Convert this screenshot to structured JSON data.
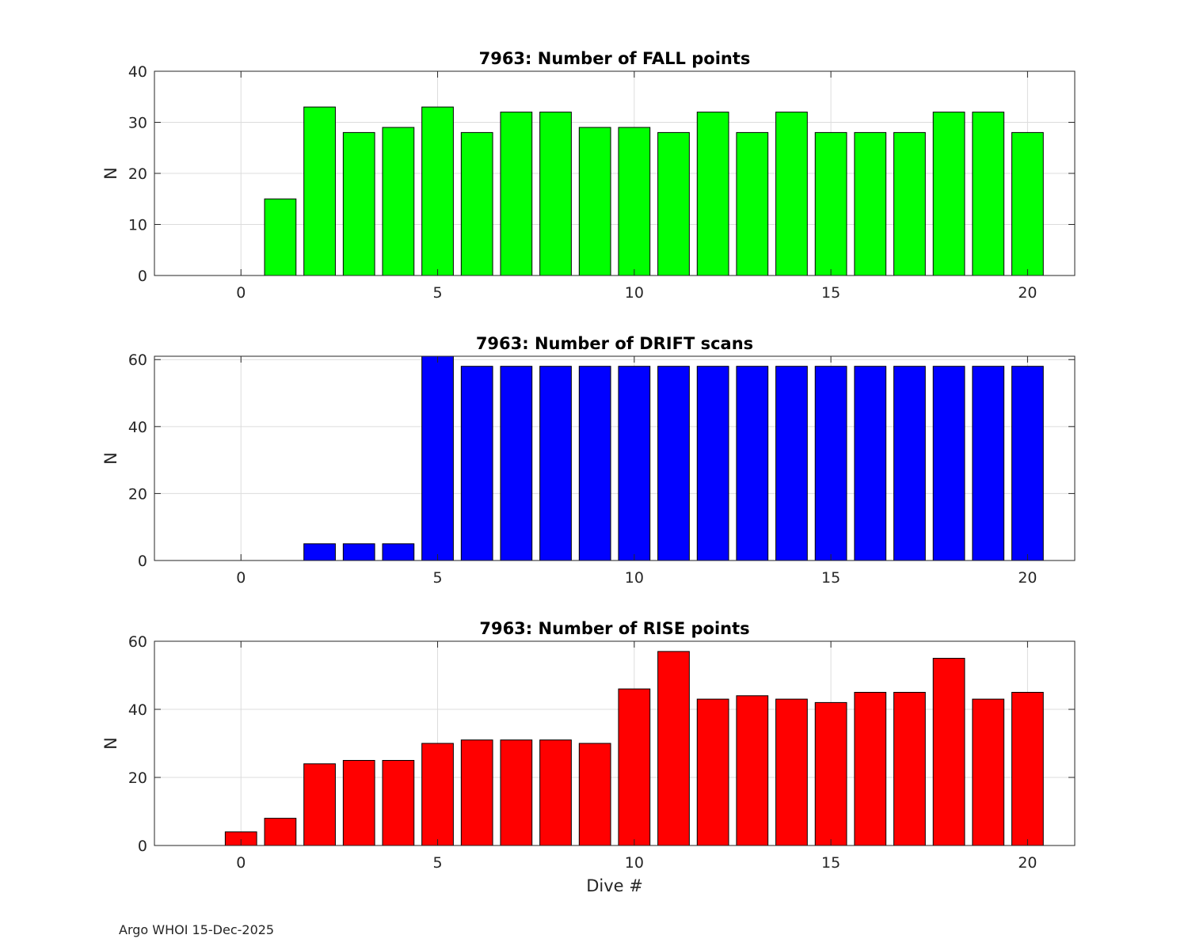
{
  "footer": "Argo WHOI 15-Dec-2025",
  "chart_data": [
    {
      "type": "bar",
      "title": "7963: Number of FALL points",
      "xlabel": "",
      "ylabel": "N",
      "x": [
        1,
        2,
        3,
        4,
        5,
        6,
        7,
        8,
        9,
        10,
        11,
        12,
        13,
        14,
        15,
        16,
        17,
        18,
        19,
        20
      ],
      "values": [
        15,
        33,
        28,
        29,
        33,
        28,
        32,
        32,
        29,
        29,
        28,
        32,
        28,
        32,
        28,
        28,
        28,
        32,
        32,
        28
      ],
      "xlim": [
        -2.2,
        21.2
      ],
      "ylim": [
        0,
        40
      ],
      "xticks": [
        0,
        5,
        10,
        15,
        20
      ],
      "yticks": [
        0,
        10,
        20,
        30,
        40
      ],
      "grid": true,
      "color": "#00ff00"
    },
    {
      "type": "bar",
      "title": "7963: Number of DRIFT scans",
      "xlabel": "",
      "ylabel": "N",
      "x": [
        2,
        3,
        4,
        5,
        6,
        7,
        8,
        9,
        10,
        11,
        12,
        13,
        14,
        15,
        16,
        17,
        18,
        19,
        20
      ],
      "values": [
        5,
        5,
        5,
        61,
        58,
        58,
        58,
        58,
        58,
        58,
        58,
        58,
        58,
        58,
        58,
        58,
        58,
        58,
        58
      ],
      "xlim": [
        -2.2,
        21.2
      ],
      "ylim": [
        0,
        61
      ],
      "xticks": [
        0,
        5,
        10,
        15,
        20
      ],
      "yticks": [
        0,
        20,
        40,
        60
      ],
      "grid": true,
      "color": "#0000ff"
    },
    {
      "type": "bar",
      "title": "7963: Number of RISE points",
      "xlabel": "Dive #",
      "ylabel": "N",
      "x": [
        0,
        1,
        2,
        3,
        4,
        5,
        6,
        7,
        8,
        9,
        10,
        11,
        12,
        13,
        14,
        15,
        16,
        17,
        18,
        19,
        20
      ],
      "values": [
        4,
        8,
        24,
        25,
        25,
        30,
        31,
        31,
        31,
        30,
        46,
        57,
        43,
        44,
        43,
        42,
        45,
        45,
        55,
        43,
        45
      ],
      "xlim": [
        -2.2,
        21.2
      ],
      "ylim": [
        0,
        60
      ],
      "xticks": [
        0,
        5,
        10,
        15,
        20
      ],
      "yticks": [
        0,
        20,
        40,
        60
      ],
      "grid": true,
      "color": "#ff0000"
    }
  ]
}
